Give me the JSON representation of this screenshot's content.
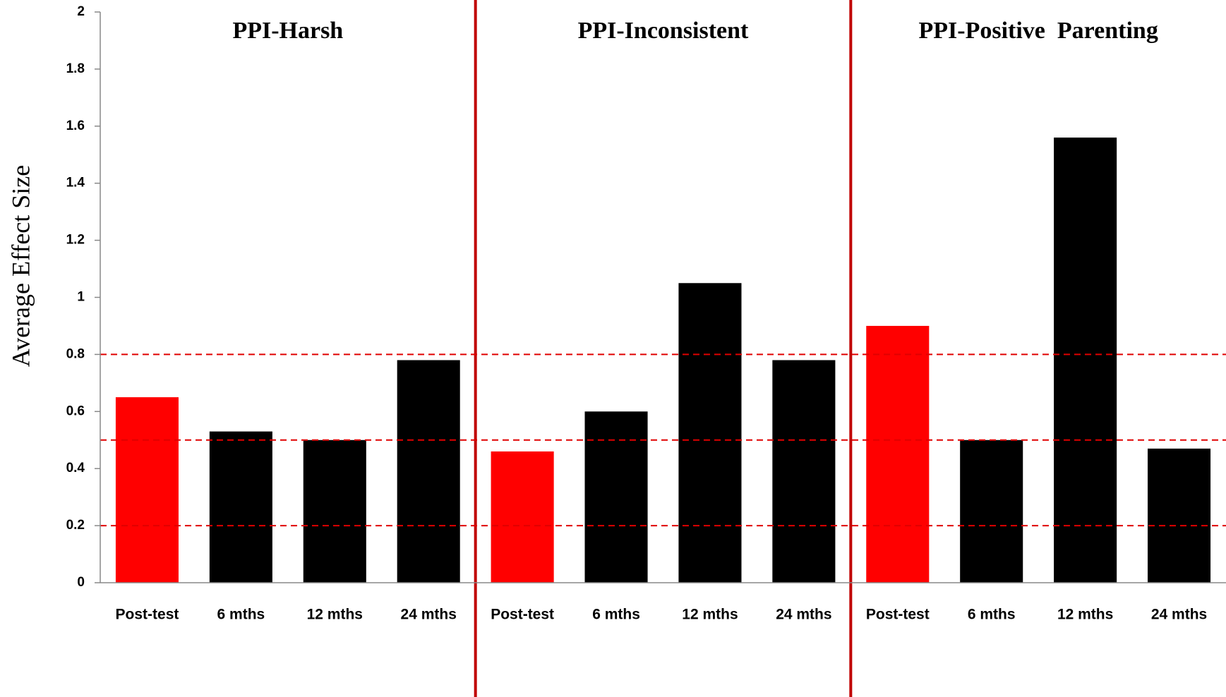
{
  "chart_data": {
    "type": "bar",
    "y_label": "Average Effect Size",
    "groups": [
      {
        "title": "PPI-Harsh",
        "categories": [
          "Post-test",
          "6 mths",
          "12 mths",
          "24 mths"
        ],
        "values": [
          0.65,
          0.53,
          0.5,
          0.78
        ],
        "colors": [
          "#ff0000",
          "#000000",
          "#000000",
          "#000000"
        ]
      },
      {
        "title": "PPI-Inconsistent",
        "categories": [
          "Post-test",
          "6 mths",
          "12 mths",
          "24 mths"
        ],
        "values": [
          0.46,
          0.6,
          1.05,
          0.78
        ],
        "colors": [
          "#ff0000",
          "#000000",
          "#000000",
          "#000000"
        ]
      },
      {
        "title": "PPI-Positive  Parenting",
        "categories": [
          "Post-test",
          "6 mths",
          "12 mths",
          "24 mths"
        ],
        "values": [
          0.9,
          0.5,
          1.56,
          0.47
        ],
        "colors": [
          "#ff0000",
          "#000000",
          "#000000",
          "#000000"
        ]
      }
    ],
    "ylim": [
      0,
      2
    ],
    "yticks": [
      0,
      0.2,
      0.4,
      0.6,
      0.8,
      1,
      1.2,
      1.4,
      1.6,
      1.8,
      2
    ],
    "reference_lines": [
      0.2,
      0.5,
      0.8
    ],
    "reference_color": "#e00000",
    "separator_color": "#c00000"
  }
}
